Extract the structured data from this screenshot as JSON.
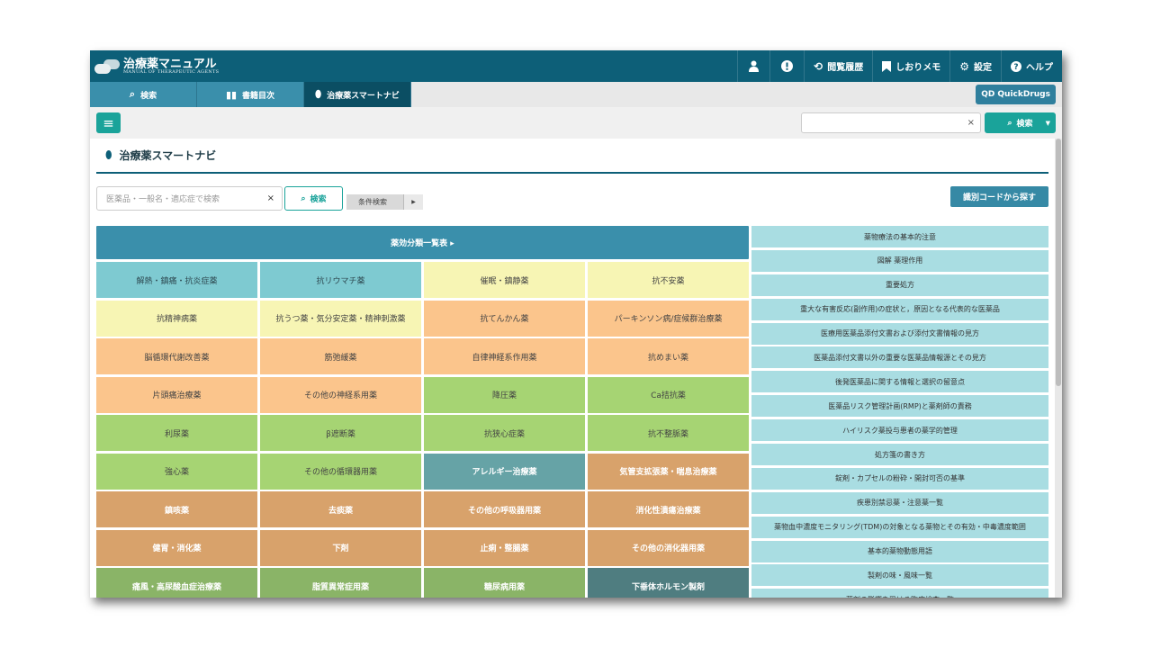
{
  "app": {
    "title": "治療薬マニュアル",
    "subtitle": "MANUAL OF THERAPEUTIC AGENTS"
  },
  "topnav": {
    "user_icon": "user-icon",
    "alert_icon": "exclamation-icon",
    "history": "閲覧履歴",
    "bookmark": "しおりメモ",
    "settings": "設定",
    "help": "ヘルプ"
  },
  "tabs": [
    {
      "label": "検索",
      "icon": "search-icon"
    },
    {
      "label": "書籍目次",
      "icon": "book-icon"
    },
    {
      "label": "治療薬スマートナビ",
      "icon": "pill-icon",
      "active": true
    }
  ],
  "quickdrugs": {
    "label": "QuickDrugs",
    "icon_text": "QD"
  },
  "toolbar": {
    "clear": "×",
    "search_label": "検索"
  },
  "page": {
    "title": "治療薬スマートナビ",
    "search_placeholder": "医薬品・一般名・適応症で検索",
    "clear": "×",
    "search_button": "検索",
    "condition_search": "条件検索",
    "id_code_button": "識別コードから探す",
    "category_header": "薬効分類一覧表 ▸"
  },
  "categories": [
    {
      "label": "解熱・鎮痛・抗炎症薬",
      "bg": "#7ecad1",
      "fg": "#2e4a52",
      "bold": false
    },
    {
      "label": "抗リウマチ薬",
      "bg": "#7ecad1",
      "fg": "#2e4a52",
      "bold": false
    },
    {
      "label": "催眠・鎮静薬",
      "bg": "#f7f5b4",
      "fg": "#444444",
      "bold": false
    },
    {
      "label": "抗不安薬",
      "bg": "#f7f5b4",
      "fg": "#444444",
      "bold": false
    },
    {
      "label": "抗精神病薬",
      "bg": "#f7f5b4",
      "fg": "#444444",
      "bold": false
    },
    {
      "label": "抗うつ薬・気分安定薬・精神刺激薬",
      "bg": "#f7f5b4",
      "fg": "#444444",
      "bold": false
    },
    {
      "label": "抗てんかん薬",
      "bg": "#fbc58c",
      "fg": "#444444",
      "bold": false
    },
    {
      "label": "パーキンソン病/症候群治療薬",
      "bg": "#fbc58c",
      "fg": "#444444",
      "bold": false
    },
    {
      "label": "脳循環代謝改善薬",
      "bg": "#fbc58c",
      "fg": "#444444",
      "bold": false
    },
    {
      "label": "筋弛緩薬",
      "bg": "#fbc58c",
      "fg": "#444444",
      "bold": false
    },
    {
      "label": "自律神経系作用薬",
      "bg": "#fbc58c",
      "fg": "#444444",
      "bold": false
    },
    {
      "label": "抗めまい薬",
      "bg": "#fbc58c",
      "fg": "#444444",
      "bold": false
    },
    {
      "label": "片頭痛治療薬",
      "bg": "#fbc58c",
      "fg": "#444444",
      "bold": false
    },
    {
      "label": "その他の神経系用薬",
      "bg": "#fbc58c",
      "fg": "#444444",
      "bold": false
    },
    {
      "label": "降圧薬",
      "bg": "#a6d473",
      "fg": "#444444",
      "bold": false
    },
    {
      "label": "Ca拮抗薬",
      "bg": "#a6d473",
      "fg": "#444444",
      "bold": false
    },
    {
      "label": "利尿薬",
      "bg": "#a6d473",
      "fg": "#444444",
      "bold": false
    },
    {
      "label": "β遮断薬",
      "bg": "#a6d473",
      "fg": "#444444",
      "bold": false
    },
    {
      "label": "抗狭心症薬",
      "bg": "#a6d473",
      "fg": "#444444",
      "bold": false
    },
    {
      "label": "抗不整脈薬",
      "bg": "#a6d473",
      "fg": "#444444",
      "bold": false
    },
    {
      "label": "強心薬",
      "bg": "#a6d473",
      "fg": "#444444",
      "bold": false
    },
    {
      "label": "その他の循環器用薬",
      "bg": "#a6d473",
      "fg": "#444444",
      "bold": false
    },
    {
      "label": "アレルギー治療薬",
      "bg": "#66a3a6",
      "fg": "#ffffff",
      "bold": true
    },
    {
      "label": "気管支拡張薬・喘息治療薬",
      "bg": "#d8a26b",
      "fg": "#ffffff",
      "bold": true
    },
    {
      "label": "鎮咳薬",
      "bg": "#d8a26b",
      "fg": "#ffffff",
      "bold": true
    },
    {
      "label": "去痰薬",
      "bg": "#d8a26b",
      "fg": "#ffffff",
      "bold": true
    },
    {
      "label": "その他の呼吸器用薬",
      "bg": "#d8a26b",
      "fg": "#ffffff",
      "bold": true
    },
    {
      "label": "消化性潰瘍治療薬",
      "bg": "#d8a26b",
      "fg": "#ffffff",
      "bold": true
    },
    {
      "label": "健胃・消化薬",
      "bg": "#d8a26b",
      "fg": "#ffffff",
      "bold": true
    },
    {
      "label": "下剤",
      "bg": "#d8a26b",
      "fg": "#ffffff",
      "bold": true
    },
    {
      "label": "止痢・整腸薬",
      "bg": "#d8a26b",
      "fg": "#ffffff",
      "bold": true
    },
    {
      "label": "その他の消化器用薬",
      "bg": "#d8a26b",
      "fg": "#ffffff",
      "bold": true
    },
    {
      "label": "痛風・高尿酸血症治療薬",
      "bg": "#8ab467",
      "fg": "#ffffff",
      "bold": true
    },
    {
      "label": "脂質異常症用薬",
      "bg": "#8ab467",
      "fg": "#ffffff",
      "bold": true
    },
    {
      "label": "糖尿病用薬",
      "bg": "#8ab467",
      "fg": "#ffffff",
      "bold": true
    },
    {
      "label": "下垂体ホルモン製剤",
      "bg": "#4f7d80",
      "fg": "#ffffff",
      "bold": true
    }
  ],
  "side_links": [
    "薬物療法の基本的注意",
    "図解 薬理作用",
    "重要処方",
    "重大な有害反応(副作用)の症状と，原因となる代表的な医薬品",
    "医療用医薬品添付文書および添付文書情報の見方",
    "医薬品添付文書以外の重要な医薬品情報源とその見方",
    "後発医薬品に関する情報と選択の留意点",
    "医薬品リスク管理計画(RMP)と薬剤師の責務",
    "ハイリスク薬投与患者の薬学的管理",
    "処方箋の書き方",
    "錠剤・カプセルの粉砕・開封可否の基準",
    "疾患別禁忌薬・注意薬一覧",
    "薬物血中濃度モニタリング(TDM)の対象となる薬物とその有効・中毒濃度範囲",
    "基本的薬物動態用語",
    "製剤の味・風味一覧",
    "薬剤の影響を受ける臨床検査一覧"
  ]
}
